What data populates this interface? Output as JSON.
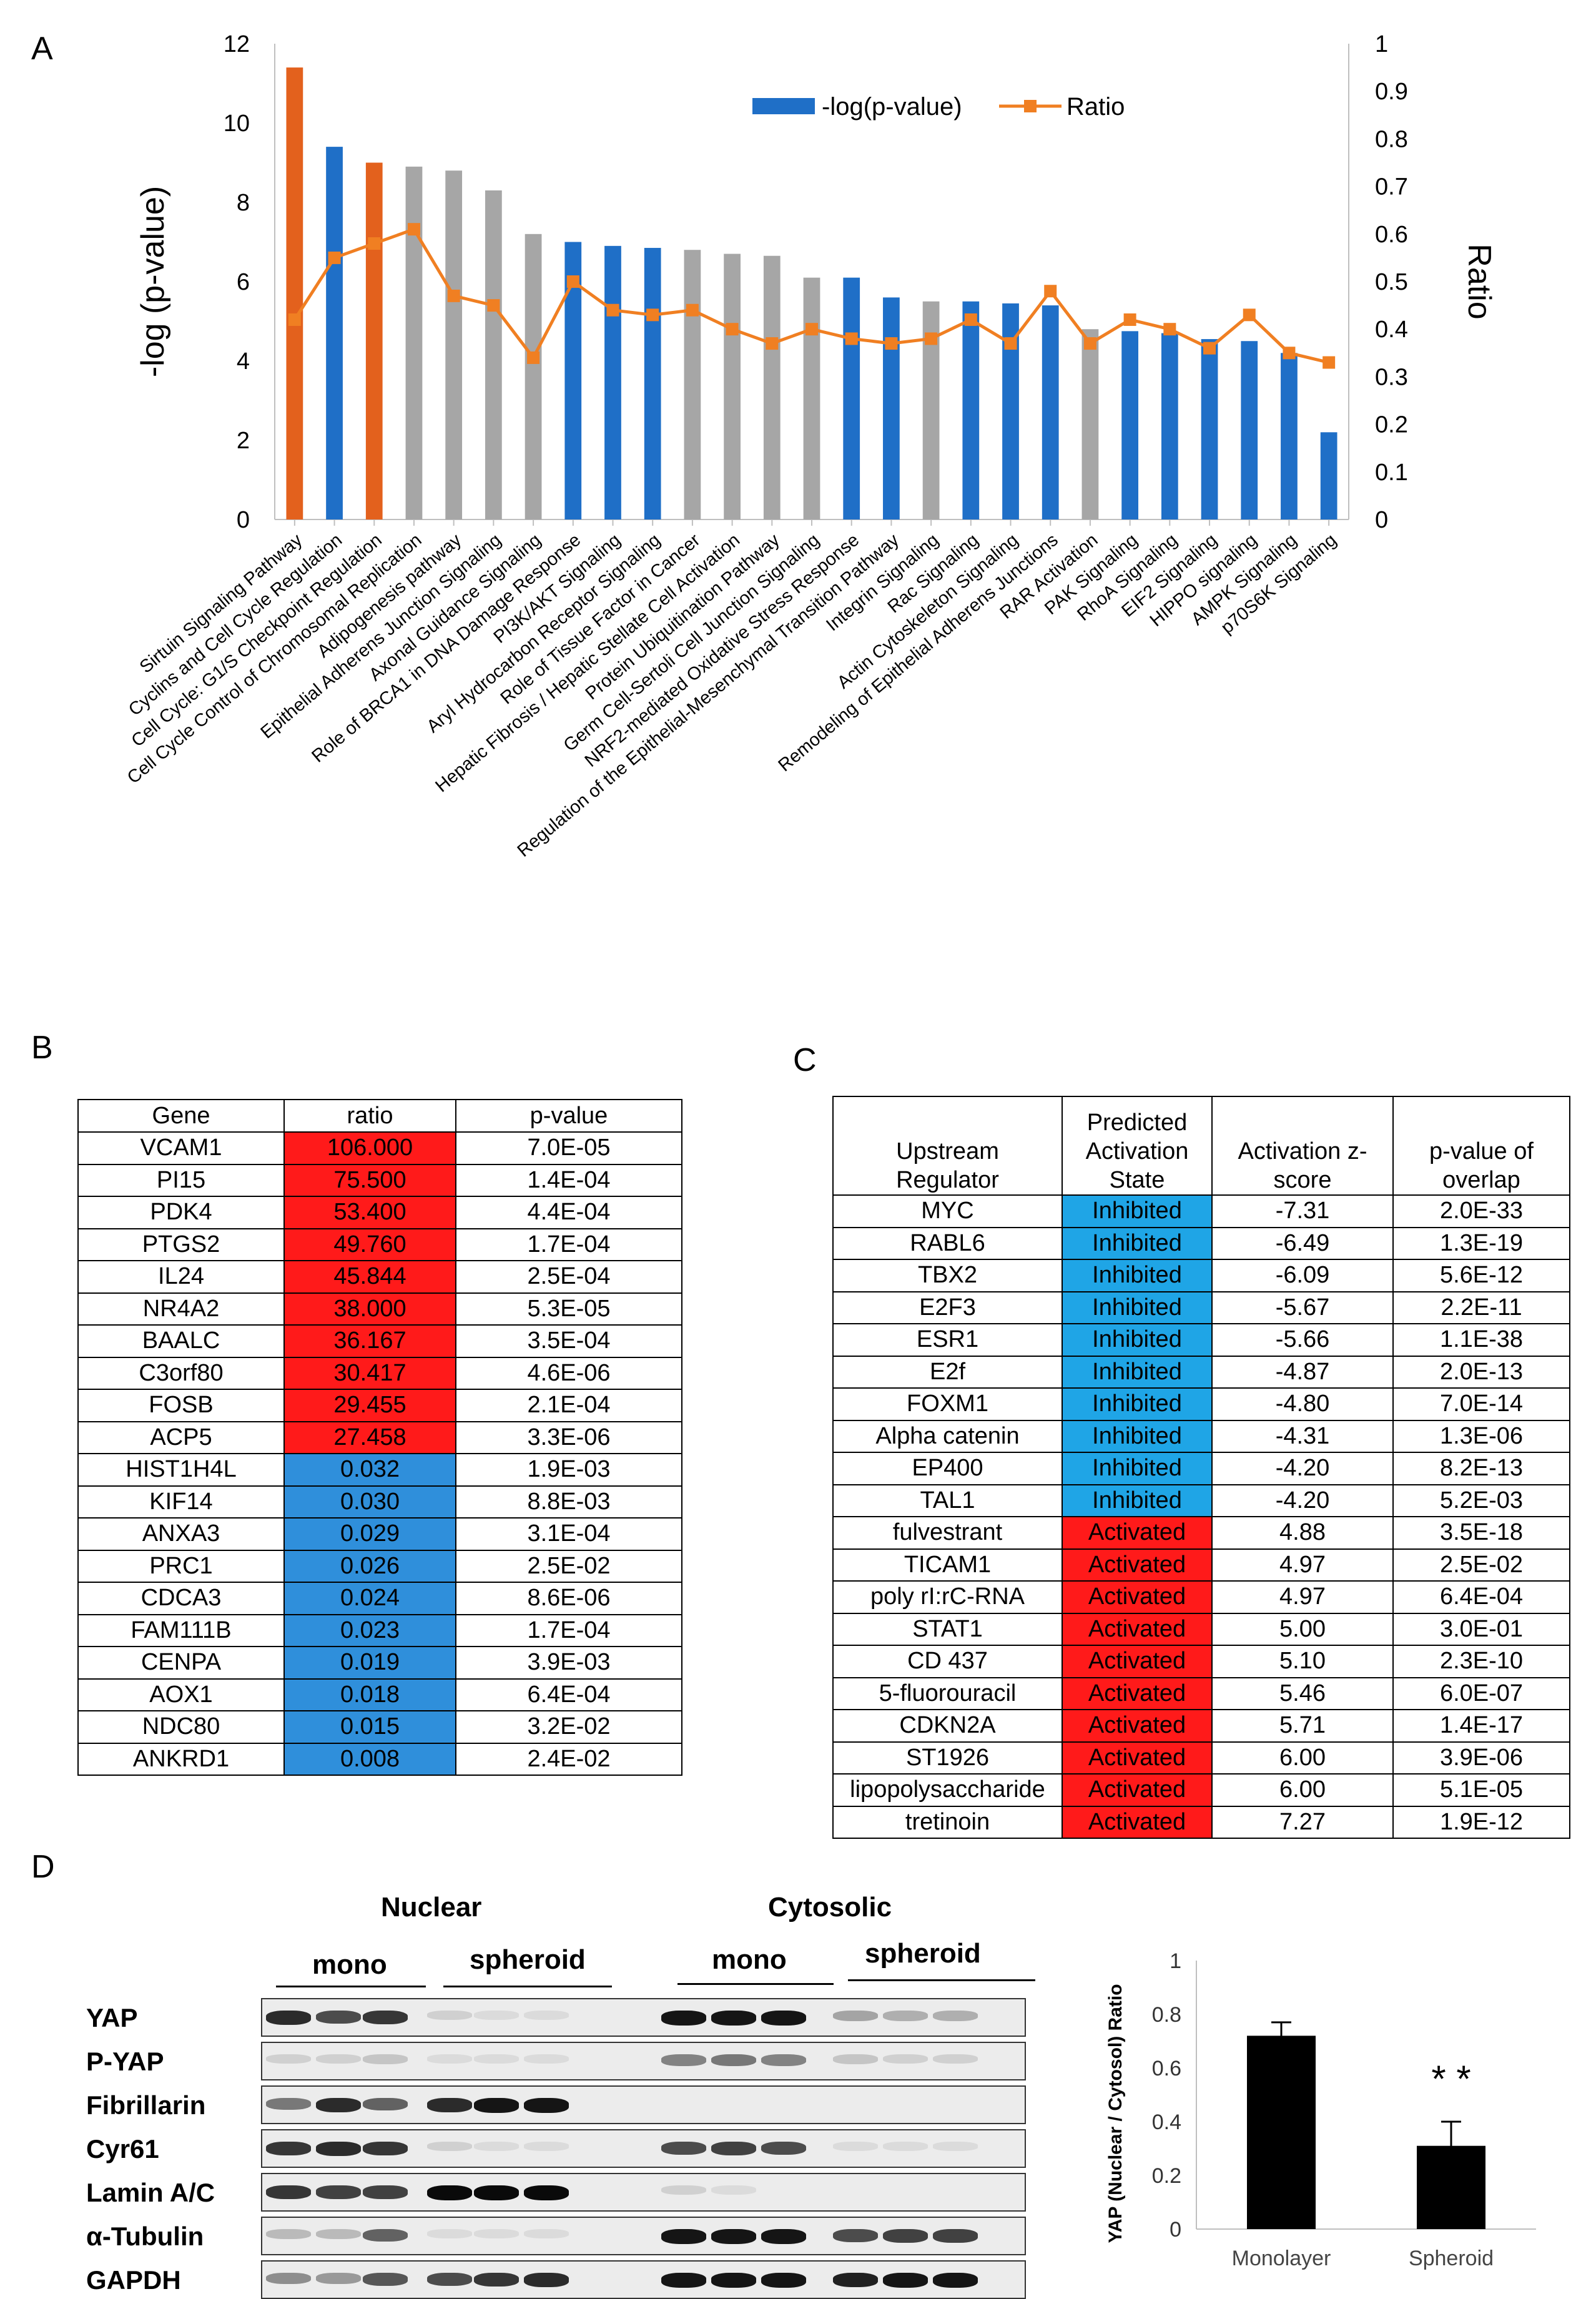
{
  "panels": {
    "a": "A",
    "b": "B",
    "c": "C",
    "d": "D"
  },
  "chart_data": [
    {
      "type": "bar",
      "panel": "A",
      "categories": [
        "Sirtuin Signaling Pathway",
        "Cyclins and Cell Cycle Regulation",
        "Cell Cycle: G1/S Checkpoint Regulation",
        "Cell Cycle Control of Chromosomal Replication",
        "Adipogenesis pathway",
        "Epithelial Adherens Junction Signaling",
        "Axonal Guidance Signaling",
        "Role of BRCA1 in DNA Damage Response",
        "PI3K/AKT Signaling",
        "Aryl Hydrocarbon Receptor Signaling",
        "Role of Tissue Factor in Cancer",
        "Hepatic Fibrosis / Hepatic Stellate Cell Activation",
        "Protein Ubiquitination Pathway",
        "Germ Cell-Sertoli Cell Junction Signaling",
        "NRF2-mediated Oxidative Stress Response",
        "Regulation of the Epithelial-Mesenchymal Transition Pathway",
        "Integrin Signaling",
        "Rac Signaling",
        "Actin Cytoskeleton Signaling",
        "Remodeling of Epithelial Adherens Junctions",
        "RAR Activation",
        "PAK Signaling",
        "RhoA Signaling",
        "EIF2 Signaling",
        "HIPPO signaling",
        "AMPK Signaling",
        "p70S6K Signaling"
      ],
      "series": [
        {
          "name": "-log(p-value)",
          "axis": "left",
          "values": [
            11.4,
            9.4,
            9.0,
            8.9,
            8.8,
            8.3,
            7.2,
            7.0,
            6.9,
            6.85,
            6.8,
            6.7,
            6.65,
            6.1,
            6.1,
            5.6,
            5.5,
            5.5,
            5.45,
            5.4,
            4.8,
            4.75,
            4.7,
            4.55,
            4.5,
            4.2,
            2.2
          ],
          "bar_colors": [
            "#e3611d",
            "#1f6fc7",
            "#e3611d",
            "#a6a6a6",
            "#a6a6a6",
            "#a6a6a6",
            "#a6a6a6",
            "#1f6fc7",
            "#1f6fc7",
            "#1f6fc7",
            "#a6a6a6",
            "#a6a6a6",
            "#a6a6a6",
            "#a6a6a6",
            "#1f6fc7",
            "#1f6fc7",
            "#a6a6a6",
            "#1f6fc7",
            "#1f6fc7",
            "#1f6fc7",
            "#a6a6a6",
            "#1f6fc7",
            "#1f6fc7",
            "#1f6fc7",
            "#1f6fc7",
            "#1f6fc7",
            "#1f6fc7"
          ]
        },
        {
          "name": "Ratio",
          "axis": "right",
          "type": "line",
          "color": "#f07f22",
          "values": [
            0.42,
            0.55,
            0.58,
            0.61,
            0.47,
            0.45,
            0.34,
            0.5,
            0.44,
            0.43,
            0.44,
            0.4,
            0.37,
            0.4,
            0.38,
            0.37,
            0.38,
            0.42,
            0.37,
            0.48,
            0.37,
            0.42,
            0.4,
            0.36,
            0.43,
            0.35,
            0.33
          ]
        }
      ],
      "ylabel": "-log (p-value)",
      "y2label": "Ratio",
      "ylim": [
        0,
        12
      ],
      "y2lim": [
        0,
        1
      ],
      "yticks": [
        "0",
        "2",
        "4",
        "6",
        "8",
        "10",
        "12"
      ],
      "y2ticks": [
        "0",
        "0.1",
        "0.2",
        "0.3",
        "0.4",
        "0.5",
        "0.6",
        "0.7",
        "0.8",
        "0.9",
        "1"
      ],
      "legend": {
        "position": "top-right",
        "bar_label": "-log(p-value)",
        "line_label": "Ratio",
        "bar_color": "#1f6fc7"
      }
    },
    {
      "type": "bar",
      "panel": "D",
      "categories": [
        "Monolayer",
        "Spheroid"
      ],
      "values": [
        0.72,
        0.31
      ],
      "errors": [
        0.05,
        0.09
      ],
      "ylabel": "YAP (Nuclear / Cytosol) Ratio",
      "ylim": [
        0,
        1
      ],
      "yticks": [
        "0",
        "0.2",
        "0.4",
        "0.6",
        "0.8",
        "1"
      ],
      "annotation": "* *",
      "bar_color": "#000000"
    }
  ],
  "table_b": {
    "headers": [
      "Gene",
      "ratio",
      "p-value"
    ],
    "up_color": "#ff1a1a",
    "down_color": "#2f8fdb",
    "rows": [
      {
        "gene": "VCAM1",
        "ratio": "106.000",
        "p": "7.0E-05",
        "dir": "up"
      },
      {
        "gene": "PI15",
        "ratio": "75.500",
        "p": "1.4E-04",
        "dir": "up"
      },
      {
        "gene": "PDK4",
        "ratio": "53.400",
        "p": "4.4E-04",
        "dir": "up"
      },
      {
        "gene": "PTGS2",
        "ratio": "49.760",
        "p": "1.7E-04",
        "dir": "up"
      },
      {
        "gene": "IL24",
        "ratio": "45.844",
        "p": "2.5E-04",
        "dir": "up"
      },
      {
        "gene": "NR4A2",
        "ratio": "38.000",
        "p": "5.3E-05",
        "dir": "up"
      },
      {
        "gene": "BAALC",
        "ratio": "36.167",
        "p": "3.5E-04",
        "dir": "up"
      },
      {
        "gene": "C3orf80",
        "ratio": "30.417",
        "p": "4.6E-06",
        "dir": "up"
      },
      {
        "gene": "FOSB",
        "ratio": "29.455",
        "p": "2.1E-04",
        "dir": "up"
      },
      {
        "gene": "ACP5",
        "ratio": "27.458",
        "p": "3.3E-06",
        "dir": "up"
      },
      {
        "gene": "HIST1H4L",
        "ratio": "0.032",
        "p": "1.9E-03",
        "dir": "down"
      },
      {
        "gene": "KIF14",
        "ratio": "0.030",
        "p": "8.8E-03",
        "dir": "down"
      },
      {
        "gene": "ANXA3",
        "ratio": "0.029",
        "p": "3.1E-04",
        "dir": "down"
      },
      {
        "gene": "PRC1",
        "ratio": "0.026",
        "p": "2.5E-02",
        "dir": "down"
      },
      {
        "gene": "CDCA3",
        "ratio": "0.024",
        "p": "8.6E-06",
        "dir": "down"
      },
      {
        "gene": "FAM111B",
        "ratio": "0.023",
        "p": "1.7E-04",
        "dir": "down"
      },
      {
        "gene": "CENPA",
        "ratio": "0.019",
        "p": "3.9E-03",
        "dir": "down"
      },
      {
        "gene": "AOX1",
        "ratio": "0.018",
        "p": "6.4E-04",
        "dir": "down"
      },
      {
        "gene": "NDC80",
        "ratio": "0.015",
        "p": "3.2E-02",
        "dir": "down"
      },
      {
        "gene": "ANKRD1",
        "ratio": "0.008",
        "p": "2.4E-02",
        "dir": "down"
      }
    ]
  },
  "table_c": {
    "headers": [
      "Upstream\nRegulator",
      "Predicted\nActivation\nState",
      "Activation z-\nscore",
      "p-value of\noverlap"
    ],
    "inhibited_color": "#1fa5e6",
    "activated_color": "#ff1a1a",
    "rows": [
      {
        "reg": "MYC",
        "state": "Inhibited",
        "z": "-7.31",
        "p": "2.0E-33"
      },
      {
        "reg": "RABL6",
        "state": "Inhibited",
        "z": "-6.49",
        "p": "1.3E-19"
      },
      {
        "reg": "TBX2",
        "state": "Inhibited",
        "z": "-6.09",
        "p": "5.6E-12"
      },
      {
        "reg": "E2F3",
        "state": "Inhibited",
        "z": "-5.67",
        "p": "2.2E-11"
      },
      {
        "reg": "ESR1",
        "state": "Inhibited",
        "z": "-5.66",
        "p": "1.1E-38"
      },
      {
        "reg": "E2f",
        "state": "Inhibited",
        "z": "-4.87",
        "p": "2.0E-13"
      },
      {
        "reg": "FOXM1",
        "state": "Inhibited",
        "z": "-4.80",
        "p": "7.0E-14"
      },
      {
        "reg": "Alpha catenin",
        "state": "Inhibited",
        "z": "-4.31",
        "p": "1.3E-06"
      },
      {
        "reg": "EP400",
        "state": "Inhibited",
        "z": "-4.20",
        "p": "8.2E-13"
      },
      {
        "reg": "TAL1",
        "state": "Inhibited",
        "z": "-4.20",
        "p": "5.2E-03"
      },
      {
        "reg": "fulvestrant",
        "state": "Activated",
        "z": "4.88",
        "p": "3.5E-18"
      },
      {
        "reg": "TICAM1",
        "state": "Activated",
        "z": "4.97",
        "p": "2.5E-02"
      },
      {
        "reg": "poly rI:rC-RNA",
        "state": "Activated",
        "z": "4.97",
        "p": "6.4E-04"
      },
      {
        "reg": "STAT1",
        "state": "Activated",
        "z": "5.00",
        "p": "3.0E-01"
      },
      {
        "reg": "CD 437",
        "state": "Activated",
        "z": "5.10",
        "p": "2.3E-10"
      },
      {
        "reg": "5-fluorouracil",
        "state": "Activated",
        "z": "5.46",
        "p": "6.0E-07"
      },
      {
        "reg": "CDKN2A",
        "state": "Activated",
        "z": "5.71",
        "p": "1.4E-17"
      },
      {
        "reg": "ST1926",
        "state": "Activated",
        "z": "6.00",
        "p": "3.9E-06"
      },
      {
        "reg": "lipopolysaccharide",
        "state": "Activated",
        "z": "6.00",
        "p": "5.1E-05"
      },
      {
        "reg": "tretinoin",
        "state": "Activated",
        "z": "7.27",
        "p": "1.9E-12"
      }
    ]
  },
  "blot": {
    "nuclear_label": "Nuclear",
    "cytosolic_label": "Cytosolic",
    "mono_label": "mono",
    "spheroid_label": "spheroid",
    "rows": [
      {
        "label": "YAP",
        "intensity": [
          0.85,
          0.7,
          0.8,
          0.1,
          0.05,
          0.05,
          0.95,
          0.95,
          0.95,
          0.3,
          0.25,
          0.25
        ]
      },
      {
        "label": "P-YAP",
        "intensity": [
          0.1,
          0.1,
          0.15,
          0.05,
          0.05,
          0.05,
          0.45,
          0.5,
          0.45,
          0.15,
          0.1,
          0.1
        ]
      },
      {
        "label": "Fibrillarin",
        "intensity": [
          0.5,
          0.85,
          0.6,
          0.85,
          0.95,
          0.95,
          0,
          0,
          0,
          0,
          0,
          0
        ]
      },
      {
        "label": "Cyr61",
        "intensity": [
          0.8,
          0.85,
          0.8,
          0.1,
          0.05,
          0.05,
          0.7,
          0.75,
          0.7,
          0.05,
          0.05,
          0.05
        ]
      },
      {
        "label": "Lamin A/C",
        "intensity": [
          0.8,
          0.75,
          0.75,
          1,
          1,
          1,
          0.1,
          0.05,
          0,
          0,
          0,
          0
        ]
      },
      {
        "label": "α-Tubulin",
        "intensity": [
          0.2,
          0.2,
          0.6,
          0.05,
          0.05,
          0.05,
          0.95,
          0.95,
          0.95,
          0.7,
          0.75,
          0.75
        ]
      },
      {
        "label": "GAPDH",
        "intensity": [
          0.4,
          0.35,
          0.65,
          0.7,
          0.8,
          0.85,
          0.95,
          0.95,
          0.95,
          0.9,
          0.95,
          0.95
        ]
      }
    ]
  }
}
